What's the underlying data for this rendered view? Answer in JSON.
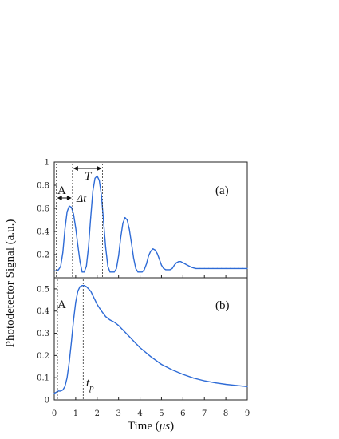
{
  "chart_data": [
    {
      "type": "line",
      "panel_label": "(a)",
      "xlim": [
        0,
        9
      ],
      "ylim": [
        0,
        1
      ],
      "x_ticks": [
        0,
        1,
        2,
        3,
        4,
        5,
        6,
        7,
        8,
        9
      ],
      "y_ticks": [
        0.2,
        0.4,
        0.6,
        0.8,
        1
      ],
      "y_tick_labels": [
        "0.2",
        "0.4",
        "0.6",
        "0.8",
        "1"
      ],
      "color": "#2e6bd6",
      "series": [
        {
          "x": [
            0,
            0.1,
            0.2,
            0.3,
            0.4,
            0.5,
            0.6,
            0.7,
            0.8,
            0.9,
            1.0,
            1.1,
            1.2,
            1.3,
            1.4,
            1.5,
            1.6,
            1.7,
            1.8,
            1.9,
            2.0,
            2.1,
            2.2,
            2.3,
            2.4,
            2.5,
            2.6,
            2.7,
            2.8,
            2.9,
            3.0,
            3.1,
            3.2,
            3.3,
            3.4,
            3.5,
            3.6,
            3.7,
            3.8,
            3.9,
            4.0,
            4.1,
            4.2,
            4.3,
            4.4,
            4.5,
            4.6,
            4.7,
            4.8,
            4.9,
            5.0,
            5.1,
            5.2,
            5.3,
            5.4,
            5.5,
            5.6,
            5.7,
            5.8,
            5.9,
            6.0,
            6.2,
            6.4,
            6.6,
            6.8,
            7.0,
            7.2,
            7.4,
            7.6,
            7.8,
            8.0,
            8.2,
            8.4,
            8.6,
            8.8,
            9.0
          ],
          "y": [
            0.06,
            0.06,
            0.07,
            0.1,
            0.22,
            0.42,
            0.57,
            0.62,
            0.61,
            0.55,
            0.43,
            0.28,
            0.14,
            0.05,
            0.05,
            0.1,
            0.27,
            0.52,
            0.75,
            0.86,
            0.88,
            0.84,
            0.71,
            0.49,
            0.26,
            0.1,
            0.05,
            0.05,
            0.05,
            0.08,
            0.19,
            0.35,
            0.47,
            0.52,
            0.5,
            0.42,
            0.3,
            0.17,
            0.08,
            0.05,
            0.05,
            0.05,
            0.07,
            0.12,
            0.19,
            0.23,
            0.25,
            0.24,
            0.21,
            0.16,
            0.11,
            0.08,
            0.07,
            0.07,
            0.07,
            0.08,
            0.11,
            0.13,
            0.14,
            0.14,
            0.13,
            0.11,
            0.09,
            0.08,
            0.08,
            0.08,
            0.08,
            0.08,
            0.08,
            0.08,
            0.08,
            0.08,
            0.08,
            0.08,
            0.08,
            0.08
          ]
        }
      ],
      "annotations": {
        "point_label": "A",
        "delta_label": "Δt",
        "period_label": "T",
        "marker_lines_x": [
          0.1,
          0.85,
          2.25
        ]
      }
    },
    {
      "type": "line",
      "panel_label": "(b)",
      "xlim": [
        0,
        9
      ],
      "ylim": [
        0,
        0.55
      ],
      "x_ticks": [
        0,
        1,
        2,
        3,
        4,
        5,
        6,
        7,
        8,
        9
      ],
      "y_ticks": [
        0,
        0.1,
        0.2,
        0.3,
        0.4,
        0.5
      ],
      "y_tick_labels": [
        "0",
        "0.1",
        "0.2",
        "0.3",
        "0.4",
        "0.5"
      ],
      "color": "#2e6bd6",
      "series": [
        {
          "x": [
            0,
            0.1,
            0.2,
            0.3,
            0.4,
            0.5,
            0.6,
            0.7,
            0.8,
            0.9,
            1.0,
            1.1,
            1.2,
            1.3,
            1.4,
            1.5,
            1.6,
            1.7,
            1.8,
            1.9,
            2.0,
            2.2,
            2.4,
            2.6,
            2.8,
            3.0,
            3.2,
            3.4,
            3.6,
            3.8,
            4.0,
            4.5,
            5.0,
            5.5,
            6.0,
            6.5,
            7.0,
            7.5,
            8.0,
            8.5,
            9.0
          ],
          "y": [
            0.03,
            0.035,
            0.04,
            0.04,
            0.045,
            0.06,
            0.1,
            0.17,
            0.26,
            0.36,
            0.44,
            0.49,
            0.51,
            0.515,
            0.515,
            0.51,
            0.5,
            0.49,
            0.47,
            0.45,
            0.43,
            0.4,
            0.375,
            0.36,
            0.35,
            0.335,
            0.315,
            0.295,
            0.275,
            0.255,
            0.235,
            0.195,
            0.16,
            0.135,
            0.115,
            0.098,
            0.086,
            0.077,
            0.07,
            0.065,
            0.06
          ]
        }
      ],
      "annotations": {
        "point_label": "A",
        "peak_label_base": "t",
        "peak_label_sub": "p",
        "marker_lines_x": [
          0.15,
          1.35
        ]
      }
    }
  ],
  "y_axis_label": "Photodetector Signal (a.u.)",
  "x_axis_label_text": "Time (",
  "x_axis_label_unit": "μs",
  "x_axis_label_close": ")"
}
